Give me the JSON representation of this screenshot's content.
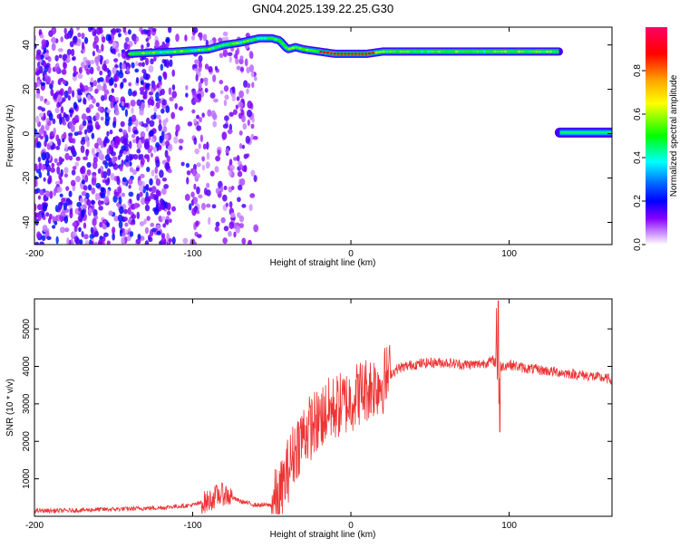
{
  "figure": {
    "title": "GN04.2025.139.22.25.G30"
  },
  "chart_data": [
    {
      "type": "heatmap",
      "xlabel": "Height of straight line (km)",
      "ylabel": "Frequency (Hz)",
      "xlim": [
        -200,
        165
      ],
      "ylim": [
        -50,
        48
      ],
      "xticks": [
        -200,
        -100,
        0,
        100
      ],
      "yticks": [
        -40,
        -20,
        0,
        20,
        40
      ],
      "colorbar": {
        "label": "Normalized spectral amplitude",
        "range": [
          0.0,
          1.0
        ],
        "ticks": [
          0.0,
          0.2,
          0.4,
          0.6,
          0.8
        ],
        "colormap": [
          "#ff0066",
          "#ff0000",
          "#ffaa00",
          "#ffff00",
          "#00ff00",
          "#00ffff",
          "#0066ff",
          "#0000ff",
          "#8800ff",
          "#ffffff"
        ]
      },
      "noise_region": {
        "x_range": [
          -200,
          -60
        ],
        "y_range": [
          -50,
          48
        ],
        "amplitude": 0.1
      },
      "main_tone": {
        "points": [
          [
            -140,
            36
          ],
          [
            -110,
            37
          ],
          [
            -90,
            38
          ],
          [
            -80,
            40
          ],
          [
            -70,
            41
          ],
          [
            -58,
            43
          ],
          [
            -50,
            43
          ],
          [
            -45,
            42
          ],
          [
            -40,
            38
          ],
          [
            -35,
            39
          ],
          [
            -30,
            38
          ],
          [
            -20,
            37
          ],
          [
            -10,
            36
          ],
          [
            0,
            36
          ],
          [
            10,
            36
          ],
          [
            20,
            37
          ],
          [
            40,
            37
          ],
          [
            60,
            37
          ],
          [
            80,
            37
          ],
          [
            90,
            37
          ],
          [
            110,
            37
          ],
          [
            132,
            37
          ]
        ],
        "amplitude": 0.5,
        "peak_segment": {
          "x_range": [
            -20,
            15
          ],
          "amplitude": 0.95
        }
      },
      "secondary_tone": {
        "x_range": [
          132,
          165
        ],
        "frequency": 0.5,
        "amplitude": 0.45
      }
    },
    {
      "type": "line",
      "xlabel": "Height of straight line (km)",
      "ylabel": "SNR (10 * v/v)",
      "xlim": [
        -200,
        165
      ],
      "ylim": [
        0,
        5800
      ],
      "xticks": [
        -200,
        -100,
        0,
        100
      ],
      "yticks": [
        1000,
        2000,
        3000,
        4000,
        5000
      ],
      "color": "#ee3333",
      "series": [
        {
          "x": [
            -200,
            -180,
            -160,
            -140,
            -120,
            -100,
            -90,
            -85,
            -80,
            -70,
            -60,
            -50,
            -45,
            -40,
            -35,
            -30,
            -25,
            -20,
            -15,
            -10,
            -5,
            0,
            5,
            10,
            15,
            20,
            25,
            30,
            40,
            50,
            60,
            70,
            80,
            85,
            90,
            95,
            100,
            110,
            120,
            130,
            140,
            150,
            165
          ],
          "y": [
            150,
            150,
            180,
            200,
            230,
            300,
            400,
            550,
            600,
            400,
            300,
            300,
            500,
            1200,
            1800,
            2200,
            2400,
            2600,
            2800,
            2900,
            3000,
            3100,
            3300,
            3400,
            3500,
            3600,
            3800,
            3950,
            4050,
            4100,
            4100,
            4050,
            4050,
            4100,
            4150,
            4000,
            4050,
            3950,
            3900,
            3850,
            3800,
            3750,
            3650
          ]
        }
      ]
    }
  ]
}
